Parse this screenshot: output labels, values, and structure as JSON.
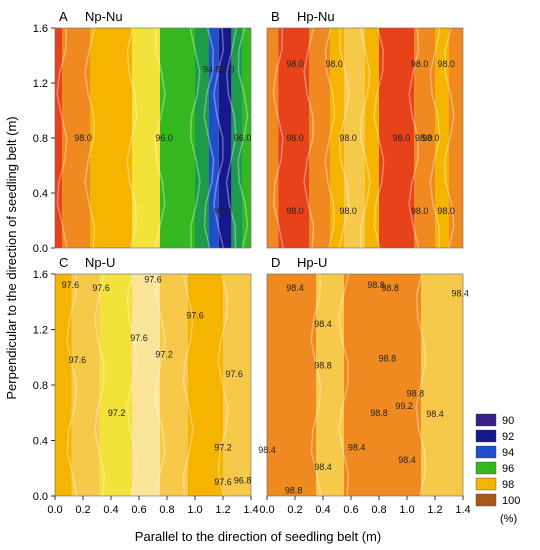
{
  "figure": {
    "ylabel": "Perpendicular to the direction of seedling belt (m)",
    "xlabel": "Parallel to the direction of seedling belt (m)"
  },
  "colors": {
    "90": "#3a1f86",
    "92": "#16168f",
    "94": "#1f4fc9",
    "96": "#35b81f",
    "98": "#f5b400",
    "100": "#a8581c",
    "yellow_98": "#f2e23a",
    "orange_98": "#f08a20",
    "red_98": "#e8421a",
    "pale_98": "#f9e49a",
    "light_orange_98": "#f7c94b"
  },
  "chart_data": [
    {
      "id": "A",
      "type": "heatmap",
      "label": "A",
      "title": "Np-Nu",
      "x_ticks": [
        "0.0",
        "0.2",
        "0.4",
        "0.6",
        "0.8",
        "1.0",
        "1.2",
        "1.4"
      ],
      "y_ticks": [
        "0.0",
        "0.4",
        "0.8",
        "1.2",
        "1.6"
      ],
      "xlim": [
        0,
        1.4
      ],
      "ylim": [
        0,
        1.6
      ],
      "contour_labels": [
        {
          "text": "98.0",
          "x": 0.2,
          "y": 0.8
        },
        {
          "text": "96.0",
          "x": 0.78,
          "y": 0.8
        },
        {
          "text": "94.0",
          "x": 1.12,
          "y": 1.3
        },
        {
          "text": "94.0",
          "x": 1.22,
          "y": 1.3
        },
        {
          "text": "96.0",
          "x": 1.34,
          "y": 0.8
        },
        {
          "text": "94.0",
          "x": 1.2,
          "y": 0.27
        }
      ],
      "bands": [
        {
          "x0": 0.0,
          "x1": 0.05,
          "color": "red_98"
        },
        {
          "x0": 0.05,
          "x1": 0.25,
          "color": "orange_98"
        },
        {
          "x0": 0.25,
          "x1": 0.55,
          "color": "98"
        },
        {
          "x0": 0.55,
          "x1": 0.75,
          "color": "yellow_98"
        },
        {
          "x0": 0.75,
          "x1": 1.0,
          "color": "96"
        },
        {
          "x0": 1.0,
          "x1": 1.1,
          "color": "#1d9a4a"
        },
        {
          "x0": 1.1,
          "x1": 1.17,
          "color": "94"
        },
        {
          "x0": 1.17,
          "x1": 1.26,
          "color": "92"
        },
        {
          "x0": 1.26,
          "x1": 1.34,
          "color": "#1d9a4a"
        },
        {
          "x0": 1.34,
          "x1": 1.4,
          "color": "96"
        }
      ]
    },
    {
      "id": "B",
      "type": "heatmap",
      "label": "B",
      "title": "Hp-Nu",
      "x_ticks": [
        "0.0",
        "0.2",
        "0.4",
        "0.6",
        "0.8",
        "1.0",
        "1.2",
        "1.4"
      ],
      "y_ticks": [
        "0.0",
        "0.4",
        "0.8",
        "1.2",
        "1.6"
      ],
      "xlim": [
        0,
        1.4
      ],
      "ylim": [
        0,
        1.6
      ],
      "contour_labels": [
        {
          "text": "98.0",
          "x": 0.2,
          "y": 1.34
        },
        {
          "text": "98.0",
          "x": 0.48,
          "y": 1.34
        },
        {
          "text": "98.0",
          "x": 1.09,
          "y": 1.34
        },
        {
          "text": "98.0",
          "x": 1.28,
          "y": 1.34
        },
        {
          "text": "98.0",
          "x": 0.2,
          "y": 0.8
        },
        {
          "text": "98.0",
          "x": 0.58,
          "y": 0.8
        },
        {
          "text": "98.0",
          "x": 0.96,
          "y": 0.8
        },
        {
          "text": "98.0",
          "x": 1.12,
          "y": 0.8
        },
        {
          "text": "98.0",
          "x": 1.17,
          "y": 0.8
        },
        {
          "text": "98.0",
          "x": 0.2,
          "y": 0.27
        },
        {
          "text": "98.0",
          "x": 0.58,
          "y": 0.27
        },
        {
          "text": "98.0",
          "x": 1.09,
          "y": 0.27
        },
        {
          "text": "98.0",
          "x": 1.28,
          "y": 0.27
        }
      ],
      "bands": [
        {
          "x0": 0.0,
          "x1": 0.08,
          "color": "orange_98"
        },
        {
          "x0": 0.08,
          "x1": 0.3,
          "color": "red_98"
        },
        {
          "x0": 0.3,
          "x1": 0.45,
          "color": "orange_98"
        },
        {
          "x0": 0.45,
          "x1": 0.55,
          "color": "98"
        },
        {
          "x0": 0.55,
          "x1": 0.7,
          "color": "light_orange_98"
        },
        {
          "x0": 0.7,
          "x1": 0.8,
          "color": "98"
        },
        {
          "x0": 0.8,
          "x1": 1.05,
          "color": "red_98"
        },
        {
          "x0": 1.05,
          "x1": 1.2,
          "color": "orange_98"
        },
        {
          "x0": 1.2,
          "x1": 1.3,
          "color": "98"
        },
        {
          "x0": 1.3,
          "x1": 1.4,
          "color": "orange_98"
        }
      ]
    },
    {
      "id": "C",
      "type": "heatmap",
      "label": "C",
      "title": "Np-U",
      "x_ticks": [
        "0.0",
        "0.2",
        "0.4",
        "0.6",
        "0.8",
        "1.0",
        "1.2",
        "1.4"
      ],
      "y_ticks": [
        "0.0",
        "0.4",
        "0.8",
        "1.2",
        "1.6"
      ],
      "xlim": [
        0,
        1.4
      ],
      "ylim": [
        0,
        1.6
      ],
      "contour_labels": [
        {
          "text": "97.6",
          "x": 0.11,
          "y": 1.52
        },
        {
          "text": "97.6",
          "x": 0.33,
          "y": 1.5
        },
        {
          "text": "97.6",
          "x": 0.7,
          "y": 1.56
        },
        {
          "text": "97.6",
          "x": 1.0,
          "y": 1.3
        },
        {
          "text": "97.6",
          "x": 0.6,
          "y": 1.14
        },
        {
          "text": "97.6",
          "x": 0.16,
          "y": 0.98
        },
        {
          "text": "97.2",
          "x": 0.78,
          "y": 1.02
        },
        {
          "text": "97.6",
          "x": 1.28,
          "y": 0.88
        },
        {
          "text": "97.2",
          "x": 0.44,
          "y": 0.6
        },
        {
          "text": "97.2",
          "x": 1.2,
          "y": 0.35
        },
        {
          "text": "97.6",
          "x": 1.2,
          "y": 0.1
        },
        {
          "text": "96.8",
          "x": 1.34,
          "y": 0.11
        }
      ],
      "bands": [
        {
          "x0": 0.0,
          "x1": 0.12,
          "color": "98"
        },
        {
          "x0": 0.12,
          "x1": 0.32,
          "color": "light_orange_98"
        },
        {
          "x0": 0.32,
          "x1": 0.55,
          "color": "yellow_98"
        },
        {
          "x0": 0.55,
          "x1": 0.75,
          "color": "pale_98"
        },
        {
          "x0": 0.75,
          "x1": 0.95,
          "color": "light_orange_98"
        },
        {
          "x0": 0.95,
          "x1": 1.2,
          "color": "98"
        },
        {
          "x0": 1.2,
          "x1": 1.4,
          "color": "light_orange_98"
        }
      ]
    },
    {
      "id": "D",
      "type": "heatmap",
      "label": "D",
      "title": "Hp-U",
      "x_ticks": [
        "0.0",
        "0.2",
        "0.4",
        "0.6",
        "0.8",
        "1.0",
        "1.2",
        "1.4"
      ],
      "y_ticks": [
        "0.0",
        "0.4",
        "0.8",
        "1.2",
        "1.6"
      ],
      "xlim": [
        0,
        1.4
      ],
      "ylim": [
        0,
        1.6
      ],
      "contour_labels": [
        {
          "text": "98.4",
          "x": 0.2,
          "y": 1.5
        },
        {
          "text": "98.8",
          "x": 0.78,
          "y": 1.52
        },
        {
          "text": "98.8",
          "x": 0.88,
          "y": 1.5
        },
        {
          "text": "98.4",
          "x": 1.38,
          "y": 1.46
        },
        {
          "text": "98.4",
          "x": 0.4,
          "y": 1.24
        },
        {
          "text": "98.8",
          "x": 0.4,
          "y": 0.94
        },
        {
          "text": "98.8",
          "x": 0.86,
          "y": 0.99
        },
        {
          "text": "98.8",
          "x": 1.06,
          "y": 0.74
        },
        {
          "text": "99.2",
          "x": 0.98,
          "y": 0.65
        },
        {
          "text": "98.8",
          "x": 0.8,
          "y": 0.6
        },
        {
          "text": "98.4",
          "x": 1.2,
          "y": 0.59
        },
        {
          "text": "98.4",
          "x": 0.0,
          "y": 0.33
        },
        {
          "text": "98.4",
          "x": 0.64,
          "y": 0.35
        },
        {
          "text": "98.4",
          "x": 0.4,
          "y": 0.21
        },
        {
          "text": "98.4",
          "x": 1.0,
          "y": 0.26
        },
        {
          "text": "98.8",
          "x": 0.19,
          "y": 0.04
        }
      ],
      "bands": [
        {
          "x0": 0.0,
          "x1": 0.35,
          "color": "orange_98"
        },
        {
          "x0": 0.35,
          "x1": 0.55,
          "color": "light_orange_98"
        },
        {
          "x0": 0.55,
          "x1": 1.1,
          "color": "orange_98"
        },
        {
          "x0": 1.1,
          "x1": 1.4,
          "color": "light_orange_98"
        }
      ]
    }
  ],
  "legend": {
    "unit": "(%)",
    "items": [
      {
        "label": "90",
        "color": "90"
      },
      {
        "label": "92",
        "color": "92"
      },
      {
        "label": "94",
        "color": "94"
      },
      {
        "label": "96",
        "color": "96"
      },
      {
        "label": "98",
        "color": "98"
      },
      {
        "label": "100",
        "color": "100"
      }
    ]
  }
}
